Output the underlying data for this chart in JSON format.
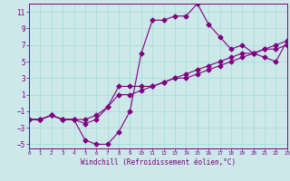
{
  "xlabel": "Windchill (Refroidissement éolien,°C)",
  "bg_color": "#cce8e8",
  "grid_color": "#aadddd",
  "line_color": "#800080",
  "xlim": [
    0,
    23
  ],
  "ylim": [
    -5.5,
    12
  ],
  "xticks": [
    0,
    1,
    2,
    3,
    4,
    5,
    6,
    7,
    8,
    9,
    10,
    11,
    12,
    13,
    14,
    15,
    16,
    17,
    18,
    19,
    20,
    21,
    22,
    23
  ],
  "yticks": [
    -5,
    -3,
    -1,
    1,
    3,
    5,
    7,
    9,
    11
  ],
  "series1_x": [
    0,
    1,
    2,
    3,
    4,
    5,
    6,
    7,
    8,
    9,
    10,
    11,
    12,
    13,
    14,
    15,
    16,
    17,
    18,
    19,
    20,
    21,
    22,
    23
  ],
  "series1_y": [
    -2,
    -2,
    -1.5,
    -2,
    -2,
    -4.5,
    -5,
    -5,
    -3.5,
    -1,
    6,
    10,
    10,
    10.5,
    10.5,
    12,
    9.5,
    8,
    6.5,
    7,
    6,
    5.5,
    5,
    7.5
  ],
  "series2_x": [
    0,
    1,
    2,
    3,
    4,
    5,
    6,
    7,
    8,
    9,
    10,
    11,
    12,
    13,
    14,
    15,
    16,
    17,
    18,
    19,
    20,
    21,
    22,
    23
  ],
  "series2_y": [
    -2,
    -2,
    -1.5,
    -2,
    -2,
    -2.5,
    -2,
    -0.5,
    2,
    2,
    2,
    2,
    2.5,
    3,
    3.5,
    4,
    4.5,
    5,
    5.5,
    6,
    6,
    6.5,
    6.5,
    7
  ],
  "series3_x": [
    0,
    1,
    2,
    3,
    4,
    5,
    6,
    7,
    8,
    9,
    10,
    11,
    12,
    13,
    14,
    15,
    16,
    17,
    18,
    19,
    20,
    21,
    22,
    23
  ],
  "series3_y": [
    -2,
    -2,
    -1.5,
    -2,
    -2,
    -2,
    -1.5,
    -0.5,
    1,
    1,
    1.5,
    2,
    2.5,
    3,
    3,
    3.5,
    4,
    4.5,
    5,
    5.5,
    6,
    6.5,
    7,
    7.5
  ],
  "markersize": 2.5,
  "linewidth": 0.8,
  "tick_fontsize_x": 4.2,
  "tick_fontsize_y": 5.5,
  "xlabel_fontsize": 5.5
}
